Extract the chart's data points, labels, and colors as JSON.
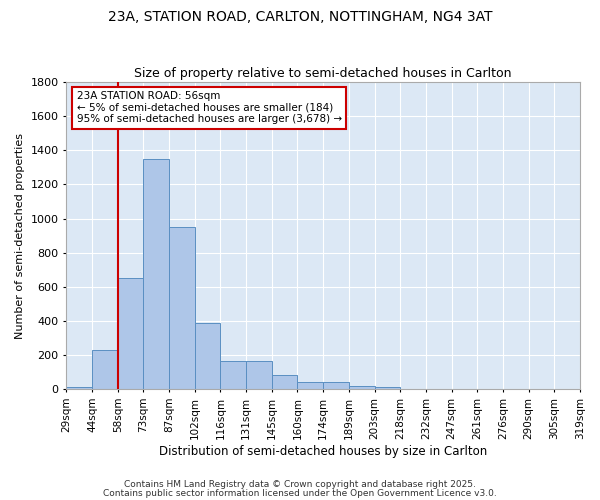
{
  "title1": "23A, STATION ROAD, CARLTON, NOTTINGHAM, NG4 3AT",
  "title2": "Size of property relative to semi-detached houses in Carlton",
  "xlabel": "Distribution of semi-detached houses by size in Carlton",
  "ylabel": "Number of semi-detached properties",
  "bin_labels": [
    "29sqm",
    "44sqm",
    "58sqm",
    "73sqm",
    "87sqm",
    "102sqm",
    "116sqm",
    "131sqm",
    "145sqm",
    "160sqm",
    "174sqm",
    "189sqm",
    "203sqm",
    "218sqm",
    "232sqm",
    "247sqm",
    "261sqm",
    "276sqm",
    "290sqm",
    "305sqm",
    "319sqm"
  ],
  "bar_values": [
    15,
    230,
    650,
    1350,
    950,
    390,
    165,
    165,
    85,
    45,
    40,
    20,
    10,
    0,
    0,
    0,
    0,
    0,
    0,
    0
  ],
  "bar_color": "#aec6e8",
  "bar_edge_color": "#5a8fc2",
  "red_line_bin_index": 2,
  "red_line_color": "#cc0000",
  "annotation_title": "23A STATION ROAD: 56sqm",
  "annotation_line1": "← 5% of semi-detached houses are smaller (184)",
  "annotation_line2": "95% of semi-detached houses are larger (3,678) →",
  "annotation_box_color": "#cc0000",
  "ylim": [
    0,
    1800
  ],
  "yticks": [
    0,
    200,
    400,
    600,
    800,
    1000,
    1200,
    1400,
    1600,
    1800
  ],
  "background_color": "#dce8f5",
  "grid_color": "#ffffff",
  "fig_background": "#ffffff",
  "footer1": "Contains HM Land Registry data © Crown copyright and database right 2025.",
  "footer2": "Contains public sector information licensed under the Open Government Licence v3.0."
}
